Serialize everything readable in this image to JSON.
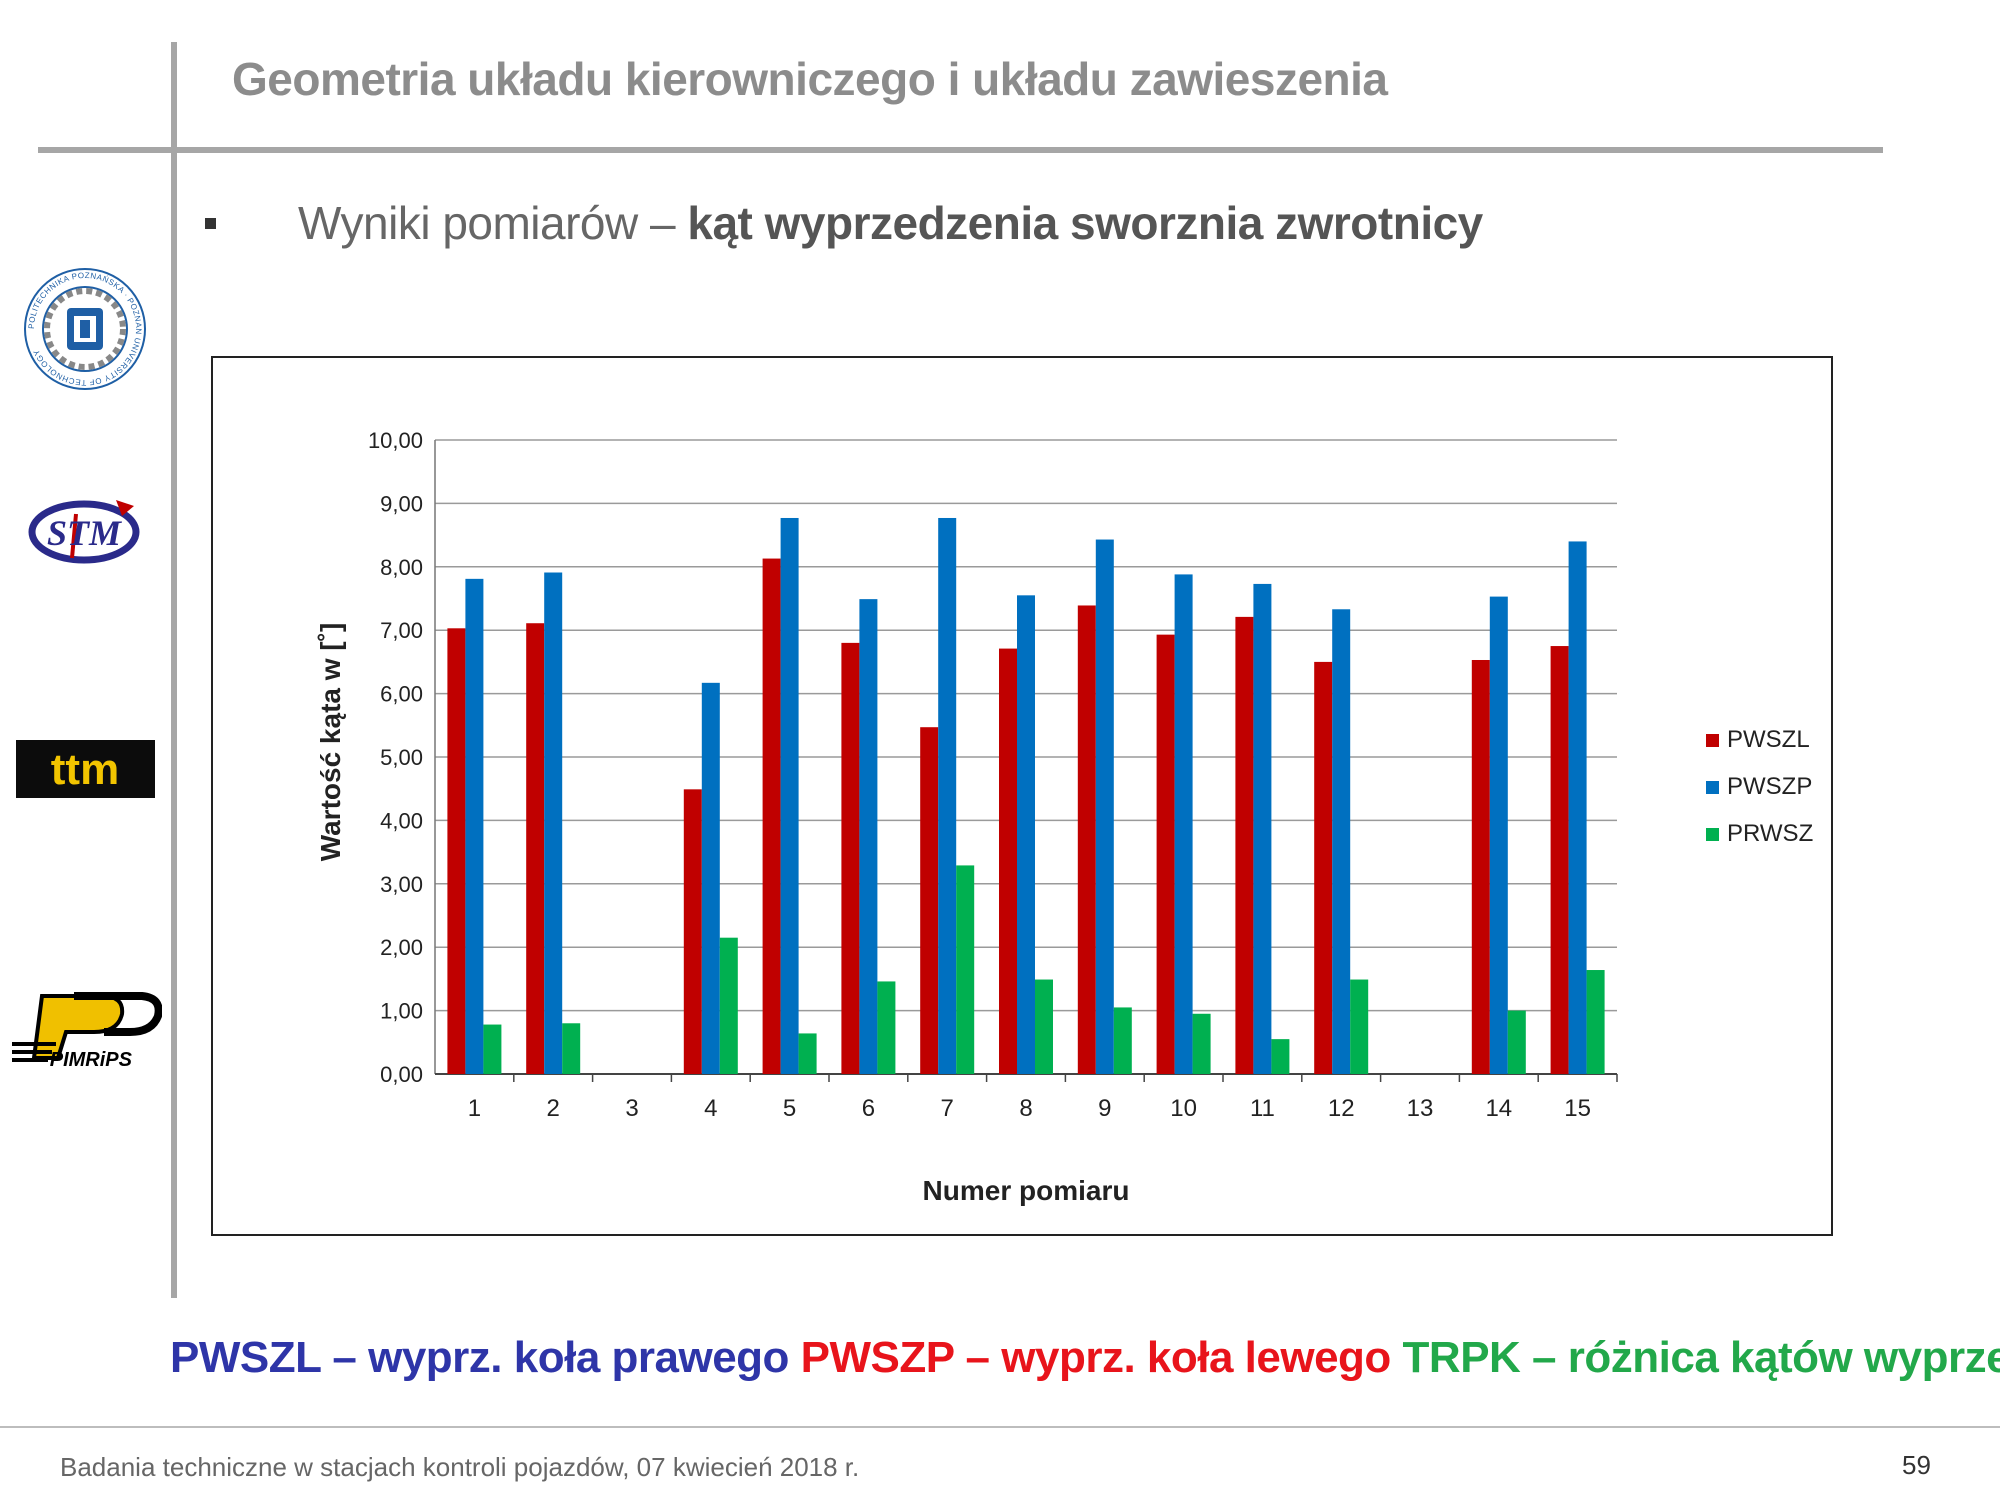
{
  "slide": {
    "title": "Geometria układu kierowniczego i układu zawieszenia",
    "subtitle_prefix": "Wyniki pomiarów – ",
    "subtitle_bold": "kąt wyprzedzenia sworznia zwrotnicy",
    "footer": "Badania techniczne w stacjach kontroli pojazdów, 07 kwiecień 2018 r.",
    "page_number": "59"
  },
  "logos": {
    "ttm_text": "ttm",
    "stm_text": "STM",
    "pimrips_text": "PIMRiPS",
    "university_text": "POLITECHNIKA POZNAŃSKA · POZNAN UNIVERSITY OF TECHNOLOGY"
  },
  "note": {
    "part1": "PWSZL – wyprz. koła prawego",
    "part2": "PWSZP – wyprz. koła lewego",
    "part3": "TRPK – różnica kątów wyprzedz.",
    "color1": "#2e35a8",
    "color2": "#e8141b",
    "color3": "#22a84a"
  },
  "chart_data": {
    "type": "bar",
    "title": "",
    "xlabel": "Numer pomiaru",
    "ylabel": "Wartość kąta w [˚]",
    "ylim": [
      0,
      10
    ],
    "yticks": [
      "0,00",
      "1,00",
      "2,00",
      "3,00",
      "4,00",
      "5,00",
      "6,00",
      "7,00",
      "8,00",
      "9,00",
      "10,00"
    ],
    "categories": [
      "1",
      "2",
      "3",
      "4",
      "5",
      "6",
      "7",
      "8",
      "9",
      "10",
      "11",
      "12",
      "13",
      "14",
      "15"
    ],
    "grid": true,
    "legend_position": "right",
    "series": [
      {
        "name": "PWSZL",
        "color": "#c00000",
        "values": [
          7.03,
          7.11,
          null,
          4.49,
          8.13,
          6.8,
          5.47,
          6.71,
          7.39,
          6.93,
          7.21,
          6.5,
          null,
          6.53,
          6.75
        ]
      },
      {
        "name": "PWSZP",
        "color": "#0070c0",
        "values": [
          7.81,
          7.91,
          null,
          6.17,
          8.77,
          7.49,
          8.77,
          7.55,
          8.43,
          7.88,
          7.73,
          7.33,
          null,
          7.53,
          8.4
        ]
      },
      {
        "name": "PRWSZ",
        "color": "#00b050",
        "values": [
          0.78,
          0.8,
          null,
          2.15,
          0.64,
          1.46,
          3.29,
          1.49,
          1.05,
          0.95,
          0.55,
          1.49,
          null,
          1.0,
          1.64
        ]
      }
    ]
  }
}
